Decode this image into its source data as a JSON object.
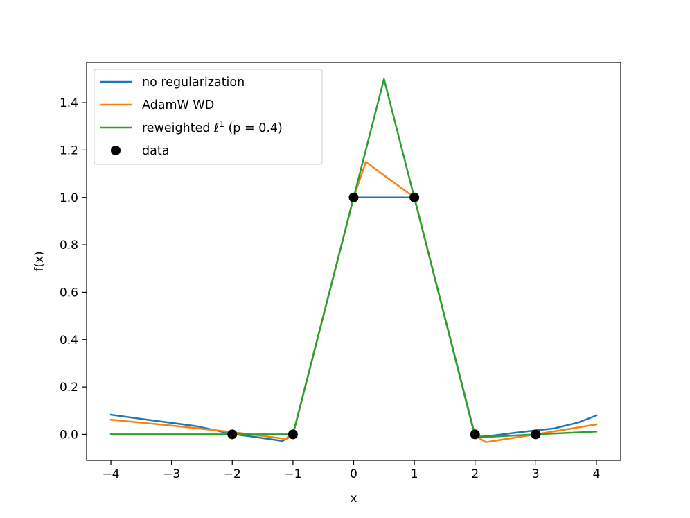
{
  "chart_data": {
    "type": "line",
    "title": "",
    "xlabel": "x",
    "ylabel": "f(x)",
    "xlim": [
      -4.4,
      4.4
    ],
    "ylim": [
      -0.11,
      1.57
    ],
    "xticks": [
      -4,
      -3,
      -2,
      -1,
      0,
      1,
      2,
      3,
      4
    ],
    "xtick_labels": [
      "−4",
      "−3",
      "−2",
      "−1",
      "0",
      "1",
      "2",
      "3",
      "4"
    ],
    "yticks": [
      0.0,
      0.2,
      0.4,
      0.6,
      0.8,
      1.0,
      1.2,
      1.4
    ],
    "ytick_labels": [
      "0.0",
      "0.2",
      "0.4",
      "0.6",
      "0.8",
      "1.0",
      "1.2",
      "1.4"
    ],
    "grid": false,
    "legend_position": "top-left",
    "series": [
      {
        "name": "no regularization",
        "color": "#1f77b4",
        "x": [
          -4,
          -3.4,
          -2.6,
          -2,
          -1.6,
          -1.17,
          -1,
          0,
          1,
          2,
          2.2,
          2.6,
          3,
          3.3,
          3.7,
          4
        ],
        "y": [
          0.083,
          0.062,
          0.035,
          0.002,
          -0.012,
          -0.028,
          0.0,
          1.0,
          1.0,
          -0.01,
          -0.008,
          0.005,
          0.017,
          0.025,
          0.05,
          0.08
        ]
      },
      {
        "name": "AdamW WD",
        "color": "#ff7f0e",
        "x": [
          -4,
          -3,
          -2,
          -1.1,
          -1,
          0,
          0.2,
          1,
          2,
          2.18,
          3,
          4
        ],
        "y": [
          0.062,
          0.037,
          0.01,
          -0.02,
          0.0,
          1.0,
          1.15,
          1.0,
          -0.005,
          -0.033,
          0.0,
          0.042
        ]
      },
      {
        "name": "reweighted ℓ¹ (p = 0.4)",
        "label_base": "reweighted ",
        "label_sup": "1",
        "label_tail": " (p = 0.4)",
        "color": "#2ca02c",
        "x": [
          -4,
          -1,
          0.5,
          2,
          2.1,
          3,
          4
        ],
        "y": [
          0.0,
          0.0,
          1.5,
          -0.005,
          -0.012,
          0.0,
          0.012
        ]
      }
    ],
    "scatter": {
      "name": "data",
      "color": "#000000",
      "x": [
        -2,
        -1,
        0,
        1,
        2,
        3
      ],
      "y": [
        0,
        0,
        1,
        1,
        0,
        0
      ]
    }
  }
}
